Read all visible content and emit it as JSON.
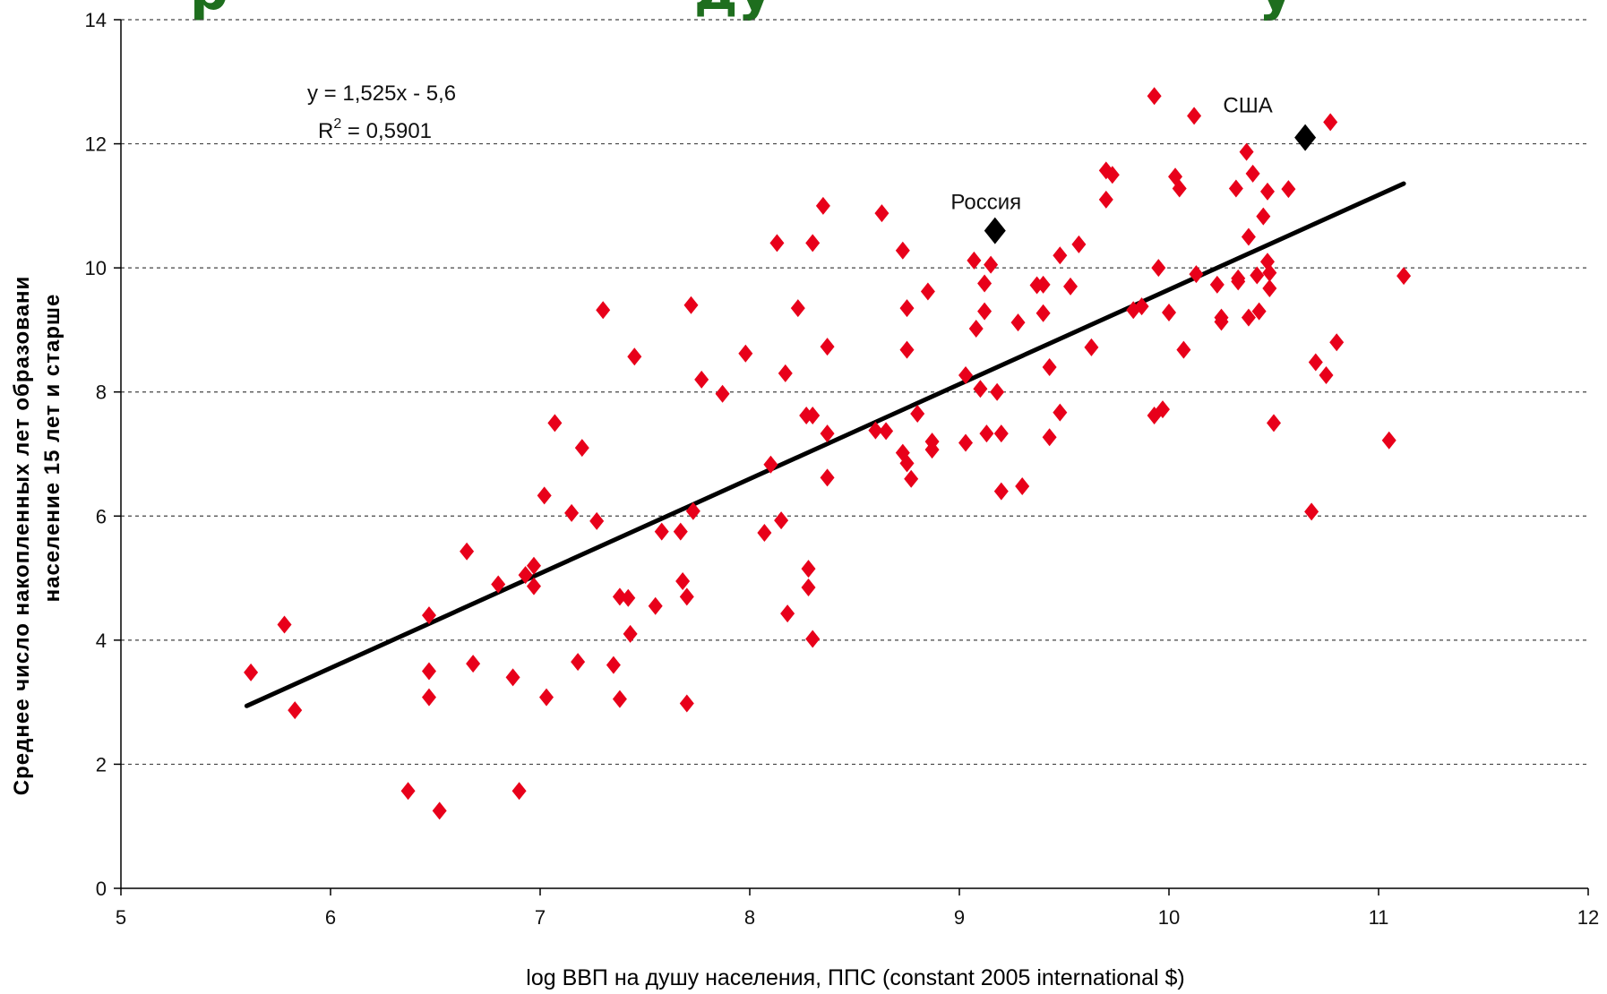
{
  "chart_data": {
    "type": "scatter",
    "title_fragment_left": "р",
    "title_fragment_mid": "ду",
    "title_fragment_right": "у",
    "xlabel": "log  ВВП на душу населения, ППС (constant 2005 international $)",
    "ylabel_line1": "Среднее число накопленных лет образовани",
    "ylabel_line2": "население 15 лет и старше",
    "xlim": [
      5,
      12
    ],
    "ylim": [
      0,
      14
    ],
    "x_ticks": [
      "5",
      "6",
      "7",
      "8",
      "9",
      "10",
      "11",
      "12"
    ],
    "y_ticks": [
      "0",
      "2",
      "4",
      "6",
      "8",
      "10",
      "12",
      "14"
    ],
    "grid": "horizontal dashed",
    "colors": {
      "points": "#e8001a",
      "highlight": "#000000",
      "trend": "#000000",
      "title": "#1e6e1e"
    },
    "trendline": {
      "equation": "y = 1,525x - 5,6",
      "r2_prefix": "R",
      "r2_sup": "2",
      "r2_value": " = 0,5901",
      "slope": 1.525,
      "intercept": -5.6,
      "x_start": 5.6,
      "x_end": 11.12
    },
    "highlights": [
      {
        "name": "Россия",
        "x": 9.17,
        "y": 10.6
      },
      {
        "name": "США",
        "x": 10.65,
        "y": 12.1
      }
    ],
    "points": [
      [
        5.62,
        3.48
      ],
      [
        5.78,
        4.25
      ],
      [
        5.83,
        2.87
      ],
      [
        6.37,
        1.57
      ],
      [
        6.47,
        4.4
      ],
      [
        6.47,
        3.5
      ],
      [
        6.47,
        3.08
      ],
      [
        6.52,
        1.25
      ],
      [
        6.65,
        5.43
      ],
      [
        6.68,
        3.62
      ],
      [
        6.8,
        4.9
      ],
      [
        6.87,
        3.4
      ],
      [
        6.9,
        1.57
      ],
      [
        6.93,
        5.05
      ],
      [
        6.97,
        5.2
      ],
      [
        6.97,
        4.87
      ],
      [
        7.02,
        6.33
      ],
      [
        7.03,
        3.08
      ],
      [
        7.07,
        7.5
      ],
      [
        7.15,
        6.05
      ],
      [
        7.18,
        3.65
      ],
      [
        7.2,
        7.1
      ],
      [
        7.27,
        5.92
      ],
      [
        7.3,
        9.32
      ],
      [
        7.35,
        3.6
      ],
      [
        7.38,
        3.05
      ],
      [
        7.38,
        4.7
      ],
      [
        7.42,
        4.68
      ],
      [
        7.43,
        4.1
      ],
      [
        7.45,
        8.57
      ],
      [
        7.55,
        4.55
      ],
      [
        7.58,
        5.75
      ],
      [
        7.67,
        5.75
      ],
      [
        7.68,
        4.95
      ],
      [
        7.7,
        2.98
      ],
      [
        7.7,
        4.7
      ],
      [
        7.72,
        9.4
      ],
      [
        7.73,
        6.08
      ],
      [
        7.77,
        8.2
      ],
      [
        7.87,
        7.97
      ],
      [
        7.98,
        8.62
      ],
      [
        8.07,
        5.73
      ],
      [
        8.1,
        6.83
      ],
      [
        8.13,
        10.4
      ],
      [
        8.15,
        5.93
      ],
      [
        8.17,
        8.3
      ],
      [
        8.18,
        4.43
      ],
      [
        8.23,
        9.35
      ],
      [
        8.27,
        7.62
      ],
      [
        8.28,
        4.85
      ],
      [
        8.28,
        5.15
      ],
      [
        8.3,
        4.02
      ],
      [
        8.3,
        7.62
      ],
      [
        8.3,
        10.4
      ],
      [
        8.35,
        11.0
      ],
      [
        8.37,
        6.62
      ],
      [
        8.37,
        8.73
      ],
      [
        8.37,
        7.33
      ],
      [
        8.6,
        7.38
      ],
      [
        8.63,
        10.88
      ],
      [
        8.65,
        7.37
      ],
      [
        8.73,
        10.28
      ],
      [
        8.73,
        7.02
      ],
      [
        8.75,
        9.35
      ],
      [
        8.75,
        8.68
      ],
      [
        8.75,
        6.85
      ],
      [
        8.77,
        6.6
      ],
      [
        8.8,
        7.65
      ],
      [
        8.85,
        9.62
      ],
      [
        8.87,
        7.2
      ],
      [
        8.87,
        7.07
      ],
      [
        9.03,
        8.27
      ],
      [
        9.03,
        7.18
      ],
      [
        9.07,
        10.12
      ],
      [
        9.08,
        9.02
      ],
      [
        9.1,
        8.05
      ],
      [
        9.12,
        9.3
      ],
      [
        9.12,
        9.75
      ],
      [
        9.13,
        7.33
      ],
      [
        9.15,
        10.05
      ],
      [
        9.18,
        8.0
      ],
      [
        9.2,
        7.33
      ],
      [
        9.2,
        6.4
      ],
      [
        9.28,
        9.12
      ],
      [
        9.3,
        6.48
      ],
      [
        9.37,
        9.72
      ],
      [
        9.4,
        9.27
      ],
      [
        9.4,
        9.73
      ],
      [
        9.43,
        7.27
      ],
      [
        9.43,
        8.4
      ],
      [
        9.48,
        10.2
      ],
      [
        9.48,
        7.67
      ],
      [
        9.53,
        9.7
      ],
      [
        9.57,
        10.38
      ],
      [
        9.63,
        8.72
      ],
      [
        9.7,
        11.1
      ],
      [
        9.7,
        11.57
      ],
      [
        9.73,
        11.5
      ],
      [
        9.83,
        9.32
      ],
      [
        9.87,
        9.38
      ],
      [
        9.93,
        12.77
      ],
      [
        9.93,
        7.62
      ],
      [
        9.95,
        10.0
      ],
      [
        9.97,
        7.72
      ],
      [
        10.0,
        9.28
      ],
      [
        10.03,
        11.47
      ],
      [
        10.05,
        11.28
      ],
      [
        10.07,
        8.68
      ],
      [
        10.12,
        12.45
      ],
      [
        10.13,
        9.9
      ],
      [
        10.23,
        9.73
      ],
      [
        10.25,
        9.2
      ],
      [
        10.25,
        9.13
      ],
      [
        10.32,
        11.28
      ],
      [
        10.33,
        9.83
      ],
      [
        10.33,
        9.78
      ],
      [
        10.37,
        11.87
      ],
      [
        10.38,
        10.5
      ],
      [
        10.38,
        9.2
      ],
      [
        10.4,
        11.52
      ],
      [
        10.42,
        9.88
      ],
      [
        10.43,
        9.3
      ],
      [
        10.45,
        10.83
      ],
      [
        10.47,
        11.23
      ],
      [
        10.47,
        10.1
      ],
      [
        10.48,
        9.92
      ],
      [
        10.48,
        9.67
      ],
      [
        10.5,
        7.5
      ],
      [
        10.57,
        11.27
      ],
      [
        10.68,
        6.07
      ],
      [
        10.7,
        8.48
      ],
      [
        10.75,
        8.27
      ],
      [
        10.77,
        12.35
      ],
      [
        10.8,
        8.8
      ],
      [
        11.05,
        7.22
      ],
      [
        11.12,
        9.87
      ]
    ]
  }
}
